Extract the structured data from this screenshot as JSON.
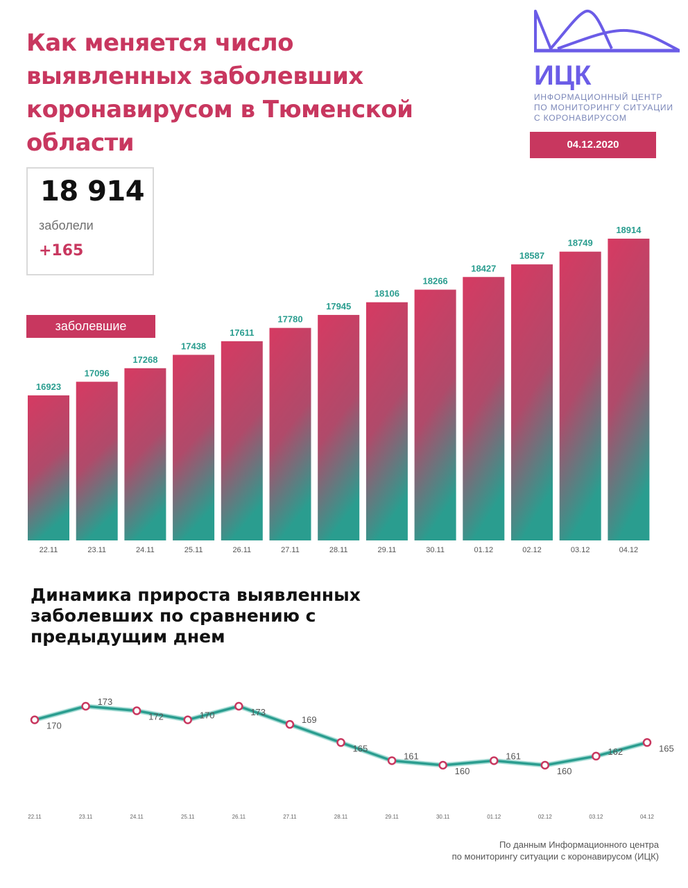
{
  "header": {
    "title": "Как меняется число выявленных заболевших коронавирусом в Тюменской области"
  },
  "summary": {
    "total_value": "18 914",
    "total_label": "заболели",
    "delta": "+165"
  },
  "logo": {
    "name": "ИЦК",
    "subtitle_lines": [
      "ИНФОРМАЦИОННЫЙ ЦЕНТР",
      "ПО МОНИТОРИНГУ СИТУАЦИИ",
      "С КОРОНАВИРУСОМ"
    ],
    "color": "#6b5ce7"
  },
  "date_badge": "04.12.2020",
  "series_badge": "заболевшие",
  "subtitle": "Динамика прироста выявленных заболевших по сравнению с предыдущим днем",
  "source": {
    "line1": "По данным Информационного центра",
    "line2": "по мониторингу ситуации с коронавирусом (ИЦК)"
  },
  "colors": {
    "accent": "#c8375f",
    "bar_top": "#d63a62",
    "bar_bottom": "#2a9d8f",
    "value_label": "#2a9d8f",
    "line": "#2a9d8f",
    "marker": "#c8375f"
  },
  "chart_data": [
    {
      "type": "bar",
      "categories": [
        "22.11",
        "23.11",
        "24.11",
        "25.11",
        "26.11",
        "27.11",
        "28.11",
        "29.11",
        "30.11",
        "01.12",
        "02.12",
        "03.12",
        "04.12"
      ],
      "series": [
        {
          "name": "заболевшие",
          "values": [
            16923,
            17096,
            17268,
            17438,
            17611,
            17780,
            17945,
            18106,
            18266,
            18427,
            18587,
            18749,
            18914
          ]
        }
      ],
      "ylim": [
        15080,
        18914
      ],
      "grid": false,
      "legend": "top-left"
    },
    {
      "type": "line",
      "title": "Динамика прироста выявленных заболевших по сравнению с предыдущим днем",
      "categories": [
        "22.11",
        "23.11",
        "24.11",
        "25.11",
        "26.11",
        "27.11",
        "28.11",
        "29.11",
        "30.11",
        "01.12",
        "02.12",
        "03.12",
        "04.12"
      ],
      "series": [
        {
          "values": [
            170,
            173,
            172,
            170,
            173,
            169,
            165,
            161,
            160,
            161,
            160,
            162,
            165
          ]
        }
      ],
      "ylim": [
        160,
        173
      ],
      "grid": false
    }
  ]
}
